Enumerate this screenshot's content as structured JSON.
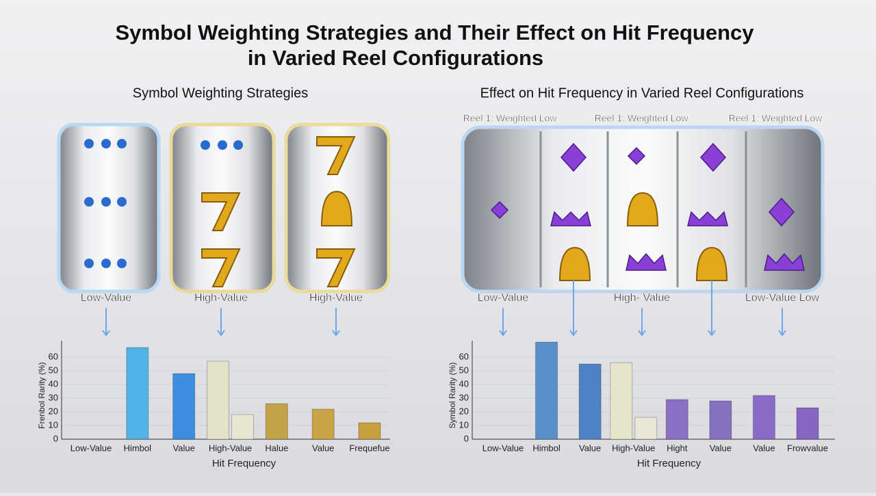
{
  "title": [
    "Symbol Weighting Strategies and Their Effect on Hit Frequency",
    "in Varied Reel Configurations"
  ],
  "chart_data": [
    {
      "type": "bar",
      "title": "Symbol Weighting Strategies",
      "reel_labels": [
        "Low-Value",
        "High-Value",
        "High-Value"
      ],
      "y_label": "Frenbol Rarity (%)",
      "x_label": "Hit Frequency",
      "categories": [
        "Low-Value",
        "Himbol",
        "Value",
        "High-Value",
        "Halue",
        "Value",
        "Frequefue"
      ],
      "series": [
        {
          "colors": [
            null,
            "#4fb3e6",
            "#3d8ee0",
            "#e4e2c8",
            "#c4a24a",
            "#c9a446",
            "#c79f3e"
          ],
          "values": [
            null,
            67,
            48,
            57,
            26,
            22,
            12
          ]
        },
        {
          "colors": [
            null,
            null,
            null,
            "#e8e6d2",
            null,
            null,
            null
          ],
          "values": [
            null,
            null,
            null,
            18,
            null,
            null,
            null
          ]
        }
      ],
      "ylim": [
        0,
        72
      ],
      "yticks": [
        0,
        10,
        20,
        30,
        40,
        50,
        60
      ]
    },
    {
      "type": "bar",
      "title": "Effect on Hit Frequency in Varied Reel Configurations",
      "reel_top_labels": [
        "Reel 1: Weighted Low",
        "Reel 1: Weighted Low",
        "Reel 1: Weighted Low"
      ],
      "reel_labels": [
        "Low-Value",
        "High- Value",
        "Low-Value Low"
      ],
      "y_label": "Symbol Rarity (%)",
      "x_label": "Hit Frequency",
      "categories": [
        "Low-Value",
        "Himbol",
        "Value",
        "High-Value",
        "Hight",
        "Value",
        "Value",
        "Frowvalue"
      ],
      "series": [
        {
          "colors": [
            null,
            "#5a8fcc",
            "#4f82c6",
            "#e6e4cc",
            "#8a70c4",
            "#8670c0",
            "#8a6cc6",
            "#8666c0"
          ],
          "values": [
            null,
            71,
            55,
            56,
            29,
            28,
            32,
            23
          ]
        },
        {
          "colors": [
            null,
            null,
            null,
            "#e8e6d4",
            null,
            null,
            null,
            null
          ],
          "values": [
            null,
            null,
            null,
            16,
            null,
            null,
            null,
            null
          ]
        }
      ],
      "ylim": [
        0,
        72
      ],
      "yticks": [
        0,
        10,
        20,
        30,
        40,
        50,
        60
      ]
    }
  ]
}
